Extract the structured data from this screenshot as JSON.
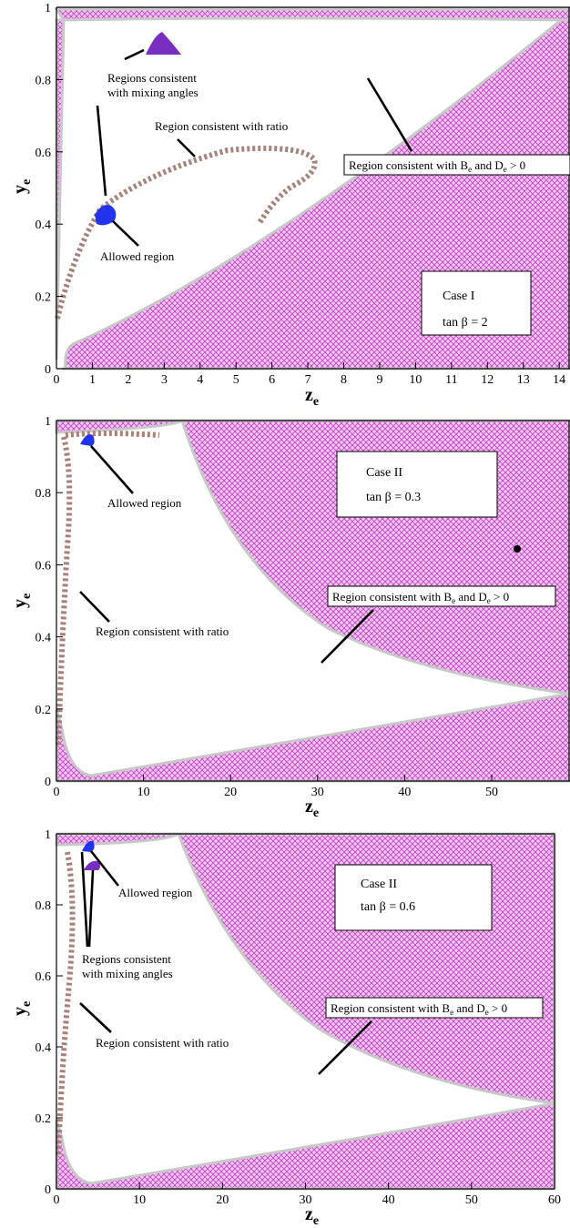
{
  "chart_data": [
    {
      "type": "area",
      "panel": "top",
      "xlabel": "z",
      "xlabel_sub": "e",
      "ylabel": "y",
      "ylabel_sub": "e",
      "xlim": [
        0,
        14.3
      ],
      "ylim": [
        0,
        1
      ],
      "xticks": [
        "0",
        "1",
        "2",
        "3",
        "4",
        "5",
        "6",
        "7",
        "8",
        "9",
        "10",
        "11",
        "12",
        "13",
        "14"
      ],
      "yticks": [
        "0",
        "0.2",
        "0.4",
        "0.6",
        "0.8",
        "1"
      ],
      "grid": false,
      "legend_box": {
        "line1": "Case I",
        "line2": "tan β  = 2"
      },
      "annotations": [
        {
          "text_lines": [
            "Regions consistent",
            "with mixing angles"
          ]
        },
        {
          "text_lines": [
            "Region consistent with ratio"
          ]
        },
        {
          "text_lines": [
            "Allowed region"
          ]
        },
        {
          "text_lines": [
            "Region consistent with B",
            "e",
            " and D",
            "e",
            " > 0"
          ],
          "boxed": true
        }
      ],
      "regions": {
        "hatched_region": [
          [
            0.2,
            0
          ],
          [
            14.3,
            0
          ],
          [
            14.3,
            0.99
          ],
          [
            0.55,
            0.03
          ],
          [
            0.25,
            0.05
          ]
        ],
        "top_band": [
          [
            0,
            0.975
          ],
          [
            14.3,
            0.975
          ],
          [
            14.3,
            1
          ],
          [
            0,
            1
          ]
        ],
        "ratio_band_points": [
          [
            0,
            0.15
          ],
          [
            0.5,
            0.3
          ],
          [
            1.5,
            0.47
          ],
          [
            3,
            0.54
          ],
          [
            5,
            0.6
          ],
          [
            6.5,
            0.62
          ],
          [
            7.2,
            0.6
          ],
          [
            6.5,
            0.55
          ],
          [
            5.5,
            0.52
          ],
          [
            4.2,
            0.47
          ],
          [
            3,
            0.4
          ]
        ],
        "allowed_points": [
          [
            1.1,
            0.41
          ],
          [
            1.3,
            0.43
          ],
          [
            1.5,
            0.44
          ],
          [
            1.35,
            0.4
          ]
        ],
        "mixing_points": [
          [
            2.5,
            0.88
          ],
          [
            2.9,
            0.93
          ],
          [
            3.3,
            0.88
          ]
        ]
      }
    },
    {
      "type": "area",
      "panel": "middle",
      "xlabel": "z",
      "xlabel_sub": "e",
      "ylabel": "y",
      "ylabel_sub": "e",
      "xlim": [
        0,
        59
      ],
      "ylim": [
        0,
        1
      ],
      "xticks": [
        "0",
        "10",
        "20",
        "30",
        "40",
        "50"
      ],
      "yticks": [
        "0",
        "0.2",
        "0.4",
        "0.6",
        "0.8",
        "1"
      ],
      "grid": false,
      "legend_box": {
        "line1": "Case II",
        "line2": "tan β  = 0.3"
      },
      "annotations": [
        {
          "text_lines": [
            "Allowed region"
          ]
        },
        {
          "text_lines": [
            "Region consistent with ratio"
          ]
        },
        {
          "text_lines": [
            "Region consistent with B",
            "e",
            " and D",
            "e",
            " > 0"
          ],
          "boxed": true
        }
      ],
      "marker_point": [
        53,
        0.645
      ],
      "regions": {
        "allowed_points": [
          [
            3,
            0.94
          ],
          [
            3.6,
            0.96
          ],
          [
            4.2,
            0.94
          ]
        ]
      }
    },
    {
      "type": "area",
      "panel": "bottom",
      "xlabel": "z",
      "xlabel_sub": "e",
      "ylabel": "y",
      "ylabel_sub": "e",
      "xlim": [
        0,
        60
      ],
      "ylim": [
        0,
        1
      ],
      "xticks": [
        "0",
        "10",
        "20",
        "30",
        "40",
        "50",
        "60"
      ],
      "yticks": [
        "0",
        "0.2",
        "0.4",
        "0.6",
        "0.8",
        "1"
      ],
      "grid": false,
      "legend_box": {
        "line1": "Case II",
        "line2": "tan β  = 0.6"
      },
      "annotations": [
        {
          "text_lines": [
            "Allowed region"
          ]
        },
        {
          "text_lines": [
            "Regions consistent",
            "with mixing angles"
          ]
        },
        {
          "text_lines": [
            "Region consistent with ratio"
          ]
        },
        {
          "text_lines": [
            "Region consistent with B",
            "e",
            " and D",
            "e",
            " > 0"
          ],
          "boxed": true
        }
      ],
      "regions": {
        "allowed_points": [
          [
            3.5,
            0.96
          ],
          [
            4,
            0.97
          ],
          [
            4.5,
            0.95
          ]
        ],
        "mixing_points": [
          [
            3.5,
            0.9
          ],
          [
            4.5,
            0.92
          ],
          [
            5.5,
            0.9
          ]
        ]
      }
    }
  ],
  "colors": {
    "hatch": "#c03ec8",
    "hatch_bg": "#f3c6f0",
    "ratio_band": "#a88178",
    "allowed": "#2233ee",
    "mixing": "#7a2ec0",
    "region_edge": "#c8c8c8"
  }
}
